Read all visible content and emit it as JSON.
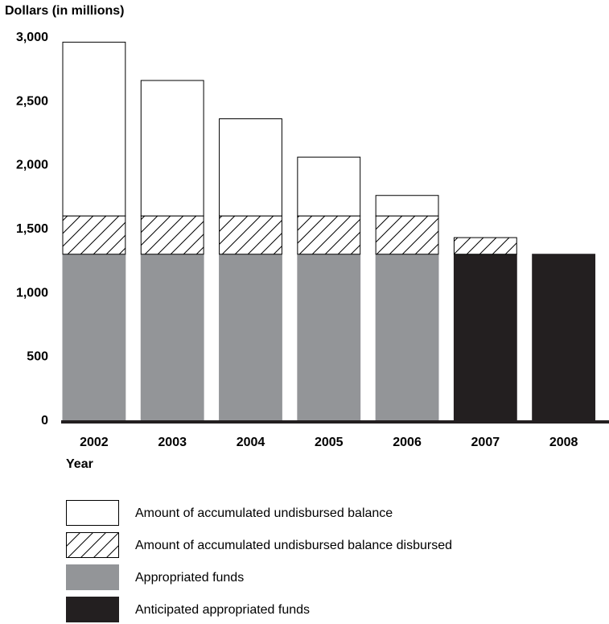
{
  "chart_data": {
    "type": "bar",
    "stacked": true,
    "ylabel": "Dollars (in millions)",
    "xlabel": "Year",
    "ylim": [
      0,
      3000
    ],
    "yticks": [
      "0",
      "500",
      "1,000",
      "1,500",
      "2,000",
      "2,500",
      "3,000"
    ],
    "ytick_values": [
      0,
      500,
      1000,
      1500,
      2000,
      2500,
      3000
    ],
    "categories": [
      "2002",
      "2003",
      "2004",
      "2005",
      "2006",
      "2007",
      "2008"
    ],
    "grid": false,
    "legend_position": "bottom",
    "series": [
      {
        "name": "Appropriated funds",
        "values": [
          1300,
          1300,
          1300,
          1300,
          1300,
          0,
          0
        ],
        "color": "#939598",
        "pattern": "solid"
      },
      {
        "name": "Anticipated appropriated funds",
        "values": [
          0,
          0,
          0,
          0,
          0,
          1300,
          1300
        ],
        "color": "#231f20",
        "pattern": "solid"
      },
      {
        "name": "Amount of accumulated undisbursed balance disbursed",
        "values": [
          300,
          300,
          300,
          300,
          300,
          130,
          0
        ],
        "color": "#ffffff",
        "pattern": "hatch"
      },
      {
        "name": "Amount of accumulated undisbursed balance",
        "values": [
          1360,
          1060,
          760,
          460,
          160,
          0,
          0
        ],
        "color": "#ffffff",
        "pattern": "solid"
      }
    ],
    "legend": [
      "Amount of accumulated undisbursed balance",
      "Amount of accumulated undisbursed balance disbursed",
      "Appropriated funds",
      "Anticipated appropriated funds"
    ]
  }
}
